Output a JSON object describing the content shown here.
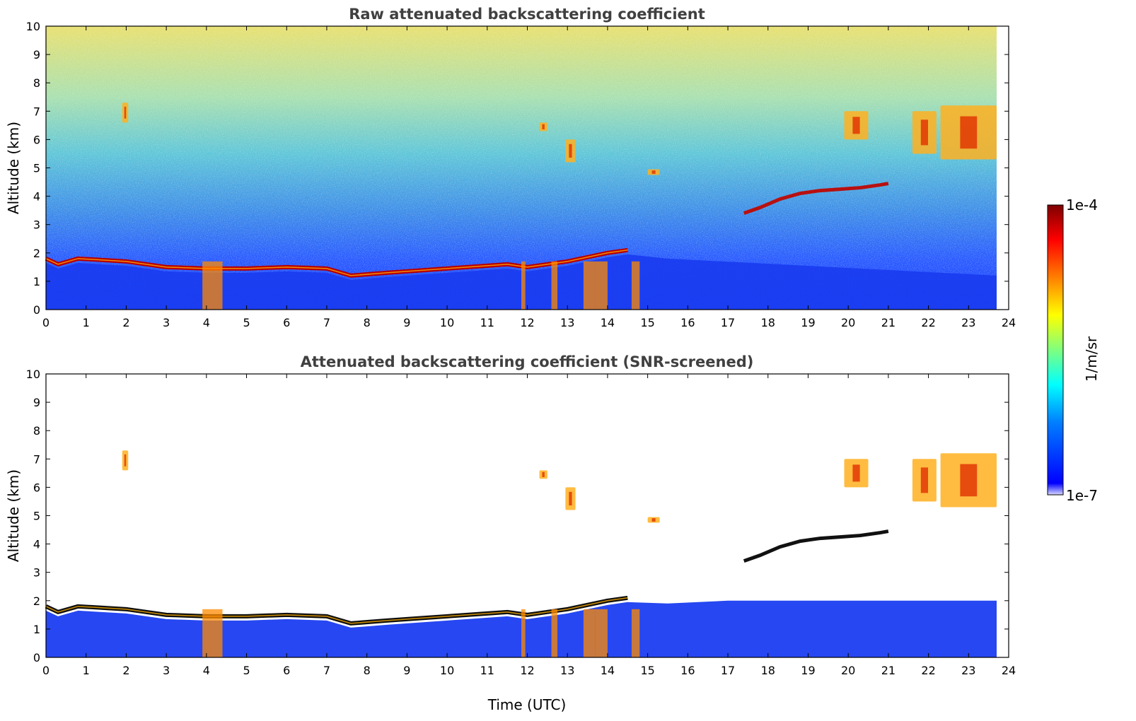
{
  "chart_data": [
    {
      "type": "heatmap",
      "title": "Raw attenuated backscattering coefficient",
      "xlabel": "",
      "ylabel": "Altitude (km)",
      "xlim": [
        0,
        24
      ],
      "ylim": [
        0,
        10
      ],
      "x_ticks": [
        0,
        1,
        2,
        3,
        4,
        5,
        6,
        7,
        8,
        9,
        10,
        11,
        12,
        13,
        14,
        15,
        16,
        17,
        18,
        19,
        20,
        21,
        22,
        23,
        24
      ],
      "y_ticks": [
        0,
        1,
        2,
        3,
        4,
        5,
        6,
        7,
        8,
        9,
        10
      ],
      "data_end_time": 23.7,
      "features": {
        "boundary_layer_top": {
          "t": [
            0,
            0.3,
            0.8,
            2.0,
            3.0,
            4.0,
            5.0,
            6.0,
            7.0,
            7.6,
            8.5,
            9.5,
            10.5,
            11.5,
            12.0,
            12.5,
            13.0,
            14.0,
            14.5
          ],
          "z": [
            1.8,
            1.6,
            1.8,
            1.7,
            1.5,
            1.45,
            1.45,
            1.5,
            1.45,
            1.2,
            1.3,
            1.4,
            1.5,
            1.6,
            1.5,
            1.6,
            1.7,
            2.0,
            2.1
          ]
        },
        "elevated_layer": {
          "t": [
            17.4,
            17.8,
            18.3,
            18.8,
            19.3,
            19.8,
            20.3,
            20.8,
            21.0
          ],
          "z": [
            3.4,
            3.6,
            3.9,
            4.1,
            4.2,
            4.25,
            4.3,
            4.4,
            4.45
          ]
        },
        "high_clouds": [
          {
            "t": [
              1.9,
              2.05
            ],
            "z": [
              6.6,
              7.3
            ]
          },
          {
            "t": [
              12.3,
              12.5
            ],
            "z": [
              6.3,
              6.6
            ]
          },
          {
            "t": [
              12.95,
              13.2
            ],
            "z": [
              5.2,
              6.0
            ]
          },
          {
            "t": [
              15.0,
              15.3
            ],
            "z": [
              4.75,
              4.95
            ]
          },
          {
            "t": [
              19.9,
              20.5
            ],
            "z": [
              6.0,
              7.0
            ]
          },
          {
            "t": [
              21.6,
              22.2
            ],
            "z": [
              5.5,
              7.0
            ]
          },
          {
            "t": [
              22.3,
              23.7
            ],
            "z": [
              5.3,
              7.2
            ]
          }
        ]
      }
    },
    {
      "type": "heatmap",
      "title": "Attenuated backscattering coefficient (SNR-screened)",
      "xlabel": "Time (UTC)",
      "ylabel": "Altitude (km)",
      "xlim": [
        0,
        24
      ],
      "ylim": [
        0,
        10
      ],
      "x_ticks": [
        0,
        1,
        2,
        3,
        4,
        5,
        6,
        7,
        8,
        9,
        10,
        11,
        12,
        13,
        14,
        15,
        16,
        17,
        18,
        19,
        20,
        21,
        22,
        23,
        24
      ],
      "y_ticks": [
        0,
        1,
        2,
        3,
        4,
        5,
        6,
        7,
        8,
        9,
        10
      ],
      "data_end_time": 23.7,
      "screened": true
    }
  ],
  "colorbar": {
    "label": "1/m/sr",
    "min_label": "1e-7",
    "max_label": "1e-4",
    "colormap": "jet",
    "colors": [
      "#00007f",
      "#0000ff",
      "#007fff",
      "#00ffff",
      "#7fff7f",
      "#ffff00",
      "#ff7f00",
      "#ff0000",
      "#7f0000"
    ]
  }
}
